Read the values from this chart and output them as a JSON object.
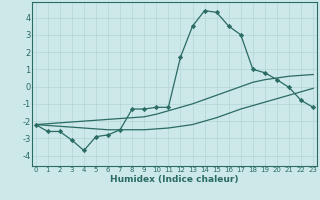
{
  "xlabel": "Humidex (Indice chaleur)",
  "background_color": "#cce8e8",
  "grid_color": "#b8d8d8",
  "line_color": "#2a6b62",
  "x_ticks": [
    0,
    1,
    2,
    3,
    4,
    5,
    6,
    7,
    8,
    9,
    10,
    11,
    12,
    13,
    14,
    15,
    16,
    17,
    18,
    19,
    20,
    21,
    22,
    23
  ],
  "y_ticks": [
    -4,
    -3,
    -2,
    -1,
    0,
    1,
    2,
    3,
    4
  ],
  "xlim": [
    -0.3,
    23.3
  ],
  "ylim": [
    -4.6,
    4.9
  ],
  "line1_x": [
    0,
    1,
    2,
    3,
    4,
    5,
    6,
    7,
    8,
    9,
    10,
    11,
    12,
    13,
    14,
    15,
    16,
    17,
    18,
    19,
    20,
    21,
    22,
    23
  ],
  "line1_y": [
    -2.2,
    -2.6,
    -2.6,
    -3.1,
    -3.7,
    -2.9,
    -2.8,
    -2.5,
    -1.3,
    -1.3,
    -1.2,
    -1.2,
    1.7,
    3.5,
    4.4,
    4.3,
    3.5,
    3.0,
    1.0,
    0.8,
    0.4,
    -0.05,
    -0.8,
    -1.2
  ],
  "line2_x": [
    0,
    1,
    2,
    3,
    4,
    5,
    6,
    7,
    8,
    9,
    10,
    11,
    12,
    13,
    14,
    15,
    16,
    17,
    18,
    19,
    20,
    21,
    22,
    23
  ],
  "line2_y": [
    -2.2,
    -2.15,
    -2.1,
    -2.05,
    -2.0,
    -1.95,
    -1.9,
    -1.85,
    -1.8,
    -1.75,
    -1.6,
    -1.4,
    -1.2,
    -1.0,
    -0.75,
    -0.5,
    -0.25,
    0.0,
    0.25,
    0.4,
    0.5,
    0.6,
    0.65,
    0.7
  ],
  "line3_x": [
    0,
    1,
    2,
    3,
    4,
    5,
    6,
    7,
    8,
    9,
    10,
    11,
    12,
    13,
    14,
    15,
    16,
    17,
    18,
    19,
    20,
    21,
    22,
    23
  ],
  "line3_y": [
    -2.2,
    -2.25,
    -2.3,
    -2.35,
    -2.4,
    -2.45,
    -2.5,
    -2.5,
    -2.5,
    -2.5,
    -2.45,
    -2.4,
    -2.3,
    -2.2,
    -2.0,
    -1.8,
    -1.55,
    -1.3,
    -1.1,
    -0.9,
    -0.7,
    -0.5,
    -0.3,
    -0.1
  ]
}
